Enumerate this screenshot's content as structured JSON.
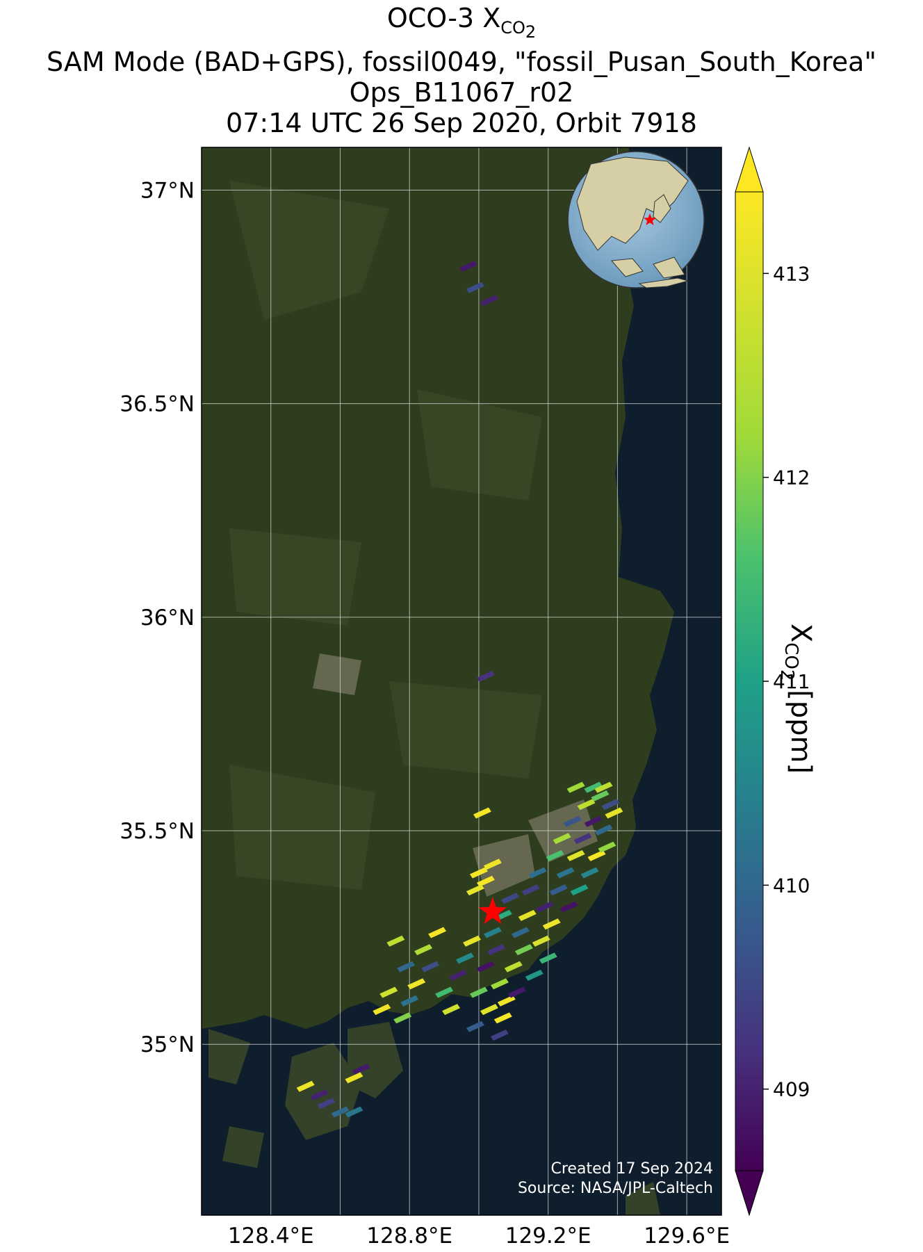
{
  "title": {
    "line1_prefix": "OCO-3 X",
    "line1_sub": "CO",
    "line1_subsub": "2",
    "line2": "SAM Mode (BAD+GPS), fossil0049, \"fossil_Pusan_South_Korea\"",
    "line3": "Ops_B11067_r02",
    "line4": "07:14 UTC 26 Sep 2020, Orbit 7918"
  },
  "map": {
    "lon_range": [
      128.2,
      129.7
    ],
    "lat_range": [
      34.6,
      37.1
    ],
    "lat_ticks": [
      {
        "value": 37.0,
        "label": "37°N"
      },
      {
        "value": 36.5,
        "label": "36.5°N"
      },
      {
        "value": 36.0,
        "label": "36°N"
      },
      {
        "value": 35.5,
        "label": "35.5°N"
      },
      {
        "value": 35.0,
        "label": "35°N"
      }
    ],
    "lon_ticks": [
      {
        "value": 128.4,
        "label": "128.4°E"
      },
      {
        "value": 128.8,
        "label": "128.8°E"
      },
      {
        "value": 129.2,
        "label": "129.2°E"
      },
      {
        "value": 129.6,
        "label": "129.6°E"
      }
    ],
    "gridlines_lon": [
      128.4,
      128.6,
      128.8,
      129.0,
      129.2,
      129.4,
      129.6
    ],
    "gridlines_lat": [
      35.0,
      35.5,
      36.0,
      36.5,
      37.0
    ],
    "target": {
      "lon": 129.04,
      "lat": 35.31,
      "marker": "red-star"
    },
    "colors": {
      "land": "#2d3a1e",
      "sea": "#0f1e2c",
      "grid": "#d9d9d9",
      "target": "#ff0000"
    }
  },
  "chart_data": {
    "type": "scatter",
    "variable": "XCO2",
    "units": "ppm",
    "clim": [
      408.6,
      413.4
    ],
    "colormap": "viridis",
    "points": [
      [
        128.78,
        35.06,
        412.0
      ],
      [
        128.8,
        35.1,
        410.2
      ],
      [
        128.82,
        35.14,
        413.2
      ],
      [
        128.86,
        35.18,
        409.6
      ],
      [
        128.84,
        35.22,
        412.4
      ],
      [
        128.88,
        35.26,
        413.3
      ],
      [
        128.9,
        35.12,
        411.5
      ],
      [
        128.94,
        35.16,
        409.0
      ],
      [
        128.92,
        35.08,
        412.8
      ],
      [
        128.96,
        35.2,
        410.6
      ],
      [
        128.98,
        35.24,
        413.1
      ],
      [
        128.99,
        35.04,
        409.8
      ],
      [
        129.0,
        35.12,
        411.8
      ],
      [
        129.02,
        35.18,
        408.8
      ],
      [
        129.03,
        35.08,
        413.0
      ],
      [
        129.04,
        35.26,
        410.4
      ],
      [
        129.06,
        35.14,
        412.2
      ],
      [
        129.05,
        35.22,
        409.2
      ],
      [
        129.08,
        35.1,
        413.2
      ],
      [
        129.07,
        35.3,
        411.2
      ],
      [
        129.09,
        35.34,
        409.5
      ],
      [
        129.1,
        35.18,
        412.6
      ],
      [
        129.12,
        35.26,
        410.0
      ],
      [
        129.11,
        35.12,
        408.9
      ],
      [
        129.13,
        35.22,
        411.9
      ],
      [
        129.14,
        35.3,
        413.1
      ],
      [
        129.15,
        35.36,
        409.4
      ],
      [
        129.16,
        35.16,
        410.8
      ],
      [
        129.18,
        35.24,
        412.9
      ],
      [
        129.17,
        35.4,
        410.1
      ],
      [
        129.19,
        35.32,
        409.0
      ],
      [
        129.2,
        35.2,
        411.4
      ],
      [
        129.21,
        35.28,
        413.2
      ],
      [
        129.22,
        35.44,
        411.6
      ],
      [
        129.23,
        35.36,
        409.8
      ],
      [
        129.24,
        35.48,
        412.3
      ],
      [
        129.25,
        35.4,
        410.2
      ],
      [
        129.26,
        35.32,
        408.8
      ],
      [
        129.27,
        35.52,
        409.7
      ],
      [
        129.28,
        35.44,
        413.0
      ],
      [
        129.29,
        35.36,
        411.0
      ],
      [
        129.3,
        35.48,
        409.2
      ],
      [
        129.31,
        35.56,
        412.6
      ],
      [
        129.32,
        35.4,
        410.5
      ],
      [
        129.33,
        35.52,
        408.9
      ],
      [
        129.34,
        35.44,
        413.3
      ],
      [
        129.35,
        35.58,
        411.8
      ],
      [
        129.36,
        35.5,
        410.0
      ],
      [
        129.37,
        35.46,
        412.1
      ],
      [
        129.38,
        35.56,
        409.6
      ],
      [
        129.39,
        35.54,
        413.1
      ],
      [
        129.28,
        35.6,
        412.2
      ],
      [
        129.33,
        35.6,
        411.5
      ],
      [
        129.36,
        35.6,
        412.6
      ],
      [
        129.02,
        35.38,
        413.3
      ],
      [
        129.04,
        35.42,
        413.2
      ],
      [
        129.01,
        35.54,
        413.3
      ],
      [
        128.99,
        35.36,
        413.1
      ],
      [
        129.0,
        35.4,
        413.3
      ],
      [
        128.76,
        35.24,
        412.6
      ],
      [
        128.79,
        35.18,
        410.0
      ],
      [
        128.74,
        35.12,
        412.8
      ],
      [
        128.72,
        35.08,
        413.2
      ],
      [
        129.07,
        35.06,
        413.3
      ],
      [
        129.06,
        35.02,
        409.4
      ],
      [
        128.97,
        36.82,
        408.9
      ],
      [
        128.99,
        36.77,
        409.6
      ],
      [
        129.03,
        36.74,
        409.0
      ],
      [
        129.02,
        35.86,
        409.2
      ],
      [
        128.5,
        34.9,
        413.2
      ],
      [
        128.54,
        34.88,
        409.0
      ],
      [
        128.56,
        34.86,
        409.4
      ],
      [
        128.6,
        34.84,
        410.0
      ],
      [
        128.64,
        34.84,
        410.2
      ],
      [
        128.66,
        34.94,
        408.9
      ],
      [
        128.64,
        34.92,
        413.2
      ]
    ]
  },
  "colorbar": {
    "ticks": [
      413,
      412,
      411,
      410,
      409
    ],
    "title_prefix": "X",
    "title_sub": "CO",
    "title_subsub": "2",
    "title_suffix": " [ppm]"
  },
  "inset_globe": {
    "highlight": "red-star",
    "land": "#d8d0a8",
    "ocean": "#8db6d4"
  },
  "credits": {
    "line1": "Created 17 Sep 2024",
    "line2": "Source: NASA/JPL-Caltech"
  }
}
